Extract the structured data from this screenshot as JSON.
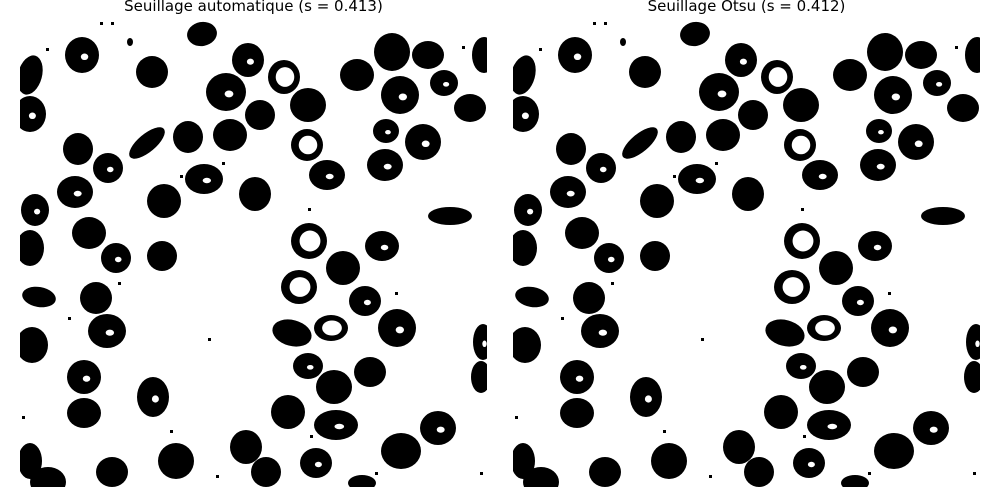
{
  "panels": [
    {
      "title": "Seuillage automatique (s = 0.413)"
    },
    {
      "title": "Seuillage Otsu (s = 0.412)"
    }
  ],
  "colors": {
    "background": "#ffffff",
    "foreground": "#000000"
  }
}
